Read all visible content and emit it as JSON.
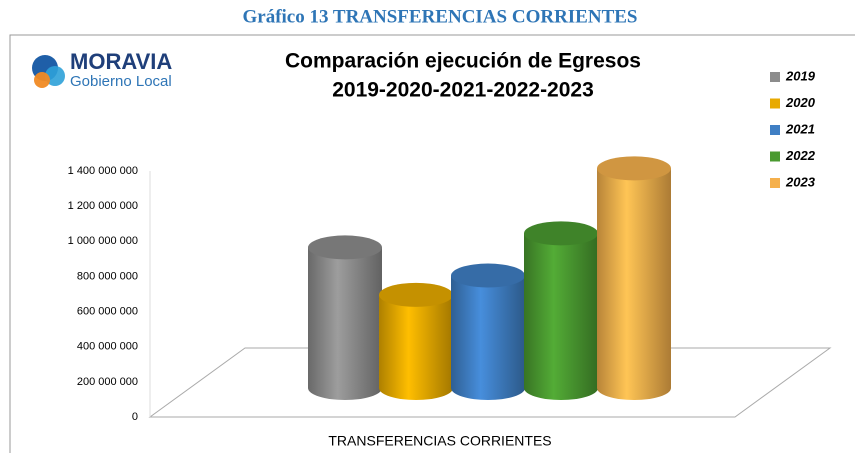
{
  "caption": "Gráfico 13 TRANSFERENCIAS CORRIENTES",
  "logo": {
    "name": "MORAVIA",
    "subtitle": "Gobierno Local"
  },
  "chart_data": {
    "type": "bar3d",
    "title": "Comparación ejecución de Egresos",
    "subtitle": "2019-2020-2021-2022-2023",
    "categories": [
      "TRANSFERENCIAS CORRIENTES"
    ],
    "series": [
      {
        "name": "2019",
        "color": "#8c8c8c",
        "values": [
          800000000
        ]
      },
      {
        "name": "2020",
        "color": "#e8aa00",
        "values": [
          530000000
        ]
      },
      {
        "name": "2021",
        "color": "#3f7fc4",
        "values": [
          640000000
        ]
      },
      {
        "name": "2022",
        "color": "#4a9a30",
        "values": [
          880000000
        ]
      },
      {
        "name": "2023",
        "color": "#f5b04c",
        "values": [
          1250000000
        ]
      }
    ],
    "ylim": [
      0,
      1400000000
    ],
    "yticks": [
      0,
      {
        "value": 200000000,
        "label": "200 000 000"
      },
      {
        "value": 400000000,
        "label": "400 000 000"
      },
      {
        "value": 600000000,
        "label": "600 000 000"
      },
      {
        "value": 800000000,
        "label": "800 000 000"
      },
      {
        "value": 1000000000,
        "label": "1 000 000 000"
      },
      {
        "value": 1200000000,
        "label": "1 200 000 000"
      },
      {
        "value": 1400000000,
        "label": "1 400 000 000"
      }
    ],
    "legend": "top-right",
    "grid": false
  }
}
